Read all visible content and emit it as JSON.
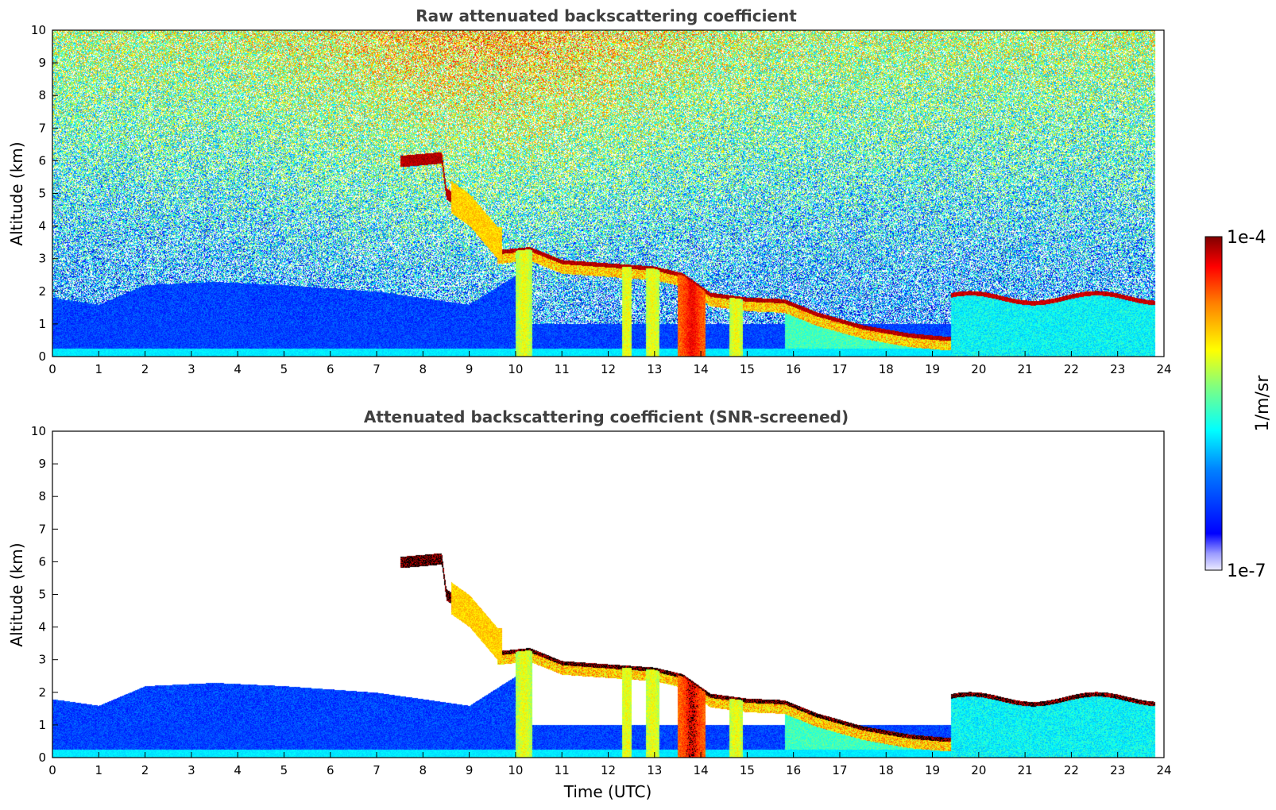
{
  "chart_data": [
    {
      "type": "heatmap",
      "title": "Raw attenuated backscattering coefficient",
      "xlabel": "",
      "ylabel": "Altitude (km)",
      "xlim": [
        0,
        24
      ],
      "ylim": [
        0,
        10
      ],
      "xticks": [
        "0",
        "1",
        "2",
        "3",
        "4",
        "5",
        "6",
        "7",
        "8",
        "9",
        "10",
        "11",
        "12",
        "13",
        "14",
        "15",
        "16",
        "17",
        "18",
        "19",
        "20",
        "21",
        "22",
        "23",
        "24"
      ],
      "yticks": [
        "0",
        "1",
        "2",
        "3",
        "4",
        "5",
        "6",
        "7",
        "8",
        "9",
        "10"
      ],
      "data_extent_x": [
        0,
        23.8
      ],
      "screening": "raw",
      "features": {
        "cloud_layer_top": [
          {
            "t": 9.6,
            "z": 3.2
          },
          {
            "t": 10.3,
            "z": 3.3
          },
          {
            "t": 11.0,
            "z": 2.9
          },
          {
            "t": 12.0,
            "z": 2.8
          },
          {
            "t": 13.0,
            "z": 2.7
          },
          {
            "t": 13.6,
            "z": 2.5
          },
          {
            "t": 14.2,
            "z": 1.9
          },
          {
            "t": 15.0,
            "z": 1.75
          },
          {
            "t": 15.8,
            "z": 1.7
          },
          {
            "t": 16.5,
            "z": 1.3
          },
          {
            "t": 17.5,
            "z": 0.9
          },
          {
            "t": 18.5,
            "z": 0.65
          },
          {
            "t": 19.3,
            "z": 0.55
          }
        ],
        "descending_aerosol_layer": [
          {
            "t": 7.6,
            "z": 6.0
          },
          {
            "t": 8.4,
            "z": 6.1
          },
          {
            "t": 8.5,
            "z": 5.0
          },
          {
            "t": 9.0,
            "z": 4.5
          },
          {
            "t": 9.6,
            "z": 3.5
          }
        ],
        "precipitation_shafts": [
          {
            "t0": 10.0,
            "t1": 10.35
          },
          {
            "t0": 12.3,
            "t1": 12.5
          },
          {
            "t0": 12.8,
            "t1": 13.1
          },
          {
            "t0": 13.5,
            "t1": 14.1
          },
          {
            "t0": 14.6,
            "t1": 14.9
          }
        ]
      }
    },
    {
      "type": "heatmap",
      "title": "Attenuated backscattering coefficient (SNR-screened)",
      "xlabel": "Time (UTC)",
      "ylabel": "Altitude (km)",
      "xlim": [
        0,
        24
      ],
      "ylim": [
        0,
        10
      ],
      "xticks": [
        "0",
        "1",
        "2",
        "3",
        "4",
        "5",
        "6",
        "7",
        "8",
        "9",
        "10",
        "11",
        "12",
        "13",
        "14",
        "15",
        "16",
        "17",
        "18",
        "19",
        "20",
        "21",
        "22",
        "23",
        "24"
      ],
      "yticks": [
        "0",
        "1",
        "2",
        "3",
        "4",
        "5",
        "6",
        "7",
        "8",
        "9",
        "10"
      ],
      "data_extent_x": [
        0,
        23.8
      ],
      "screening": "snr",
      "features": {
        "boundary_layer_top": [
          {
            "t": 0.0,
            "z": 1.8
          },
          {
            "t": 1.0,
            "z": 1.6
          },
          {
            "t": 2.0,
            "z": 2.2
          },
          {
            "t": 3.5,
            "z": 2.3
          },
          {
            "t": 5.0,
            "z": 2.2
          },
          {
            "t": 7.0,
            "z": 2.0
          },
          {
            "t": 9.0,
            "z": 1.6
          },
          {
            "t": 10.0,
            "z": 2.5
          }
        ]
      }
    }
  ],
  "colorbar": {
    "label": "1/m/sr",
    "max_label": "1e-4",
    "min_label": "1e-7",
    "scale": "log",
    "range": [
      1e-07,
      0.0001
    ],
    "colormap": "jet",
    "colors": [
      "#ffffff",
      "#0000ff",
      "#00a0ff",
      "#00ffff",
      "#80ff80",
      "#ffff00",
      "#ff8000",
      "#ff0000",
      "#800000"
    ]
  }
}
